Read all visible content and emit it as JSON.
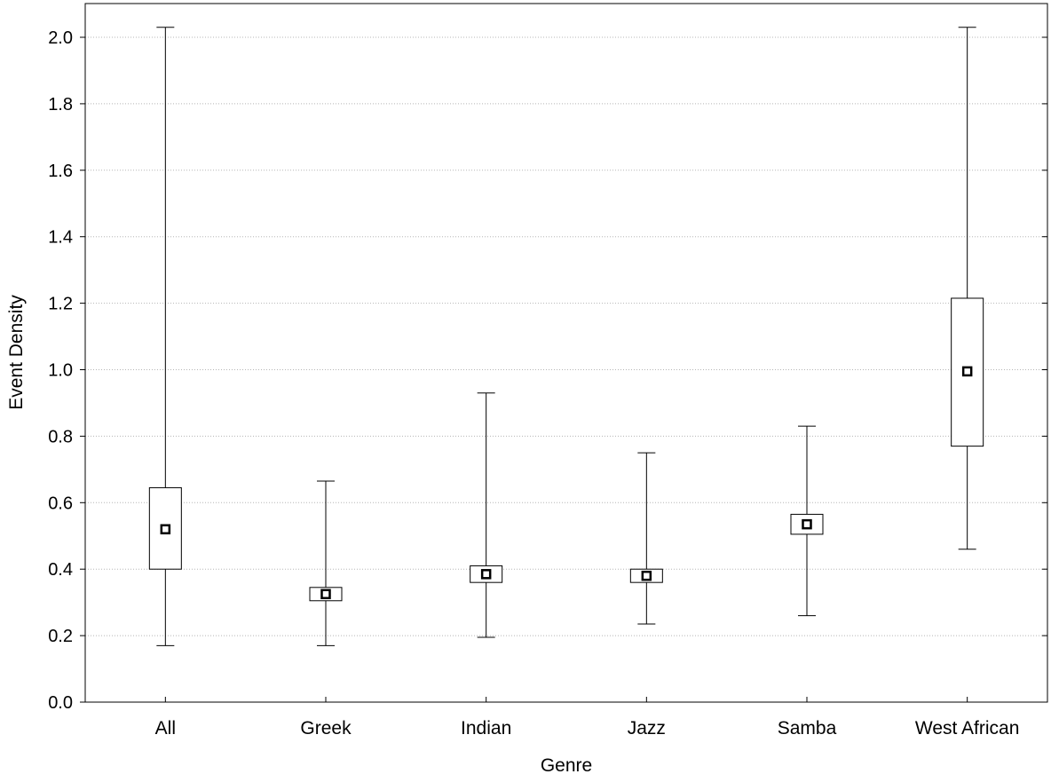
{
  "chart_data": {
    "type": "box",
    "title": "",
    "xlabel": "Genre",
    "ylabel": "Event Density",
    "ylim": [
      0,
      2.1
    ],
    "yticks": [
      "0.0",
      "0.2",
      "0.4",
      "0.6",
      "0.8",
      "1.0",
      "1.2",
      "1.4",
      "1.6",
      "1.8",
      "2.0"
    ],
    "grid": "horizontal dotted",
    "categories": [
      "All",
      "Greek",
      "Indian",
      "Jazz",
      "Samba",
      "West African"
    ],
    "series": [
      {
        "category": "All",
        "min": 0.17,
        "q1": 0.4,
        "median": 0.52,
        "q3": 0.645,
        "max": 2.03
      },
      {
        "category": "Greek",
        "min": 0.17,
        "q1": 0.305,
        "median": 0.325,
        "q3": 0.345,
        "max": 0.665
      },
      {
        "category": "Indian",
        "min": 0.195,
        "q1": 0.36,
        "median": 0.385,
        "q3": 0.41,
        "max": 0.93
      },
      {
        "category": "Jazz",
        "min": 0.235,
        "q1": 0.36,
        "median": 0.38,
        "q3": 0.4,
        "max": 0.75
      },
      {
        "category": "Samba",
        "min": 0.26,
        "q1": 0.505,
        "median": 0.535,
        "q3": 0.565,
        "max": 0.83
      },
      {
        "category": "West African",
        "min": 0.46,
        "q1": 0.77,
        "median": 0.995,
        "q3": 1.215,
        "max": 2.03
      }
    ]
  }
}
